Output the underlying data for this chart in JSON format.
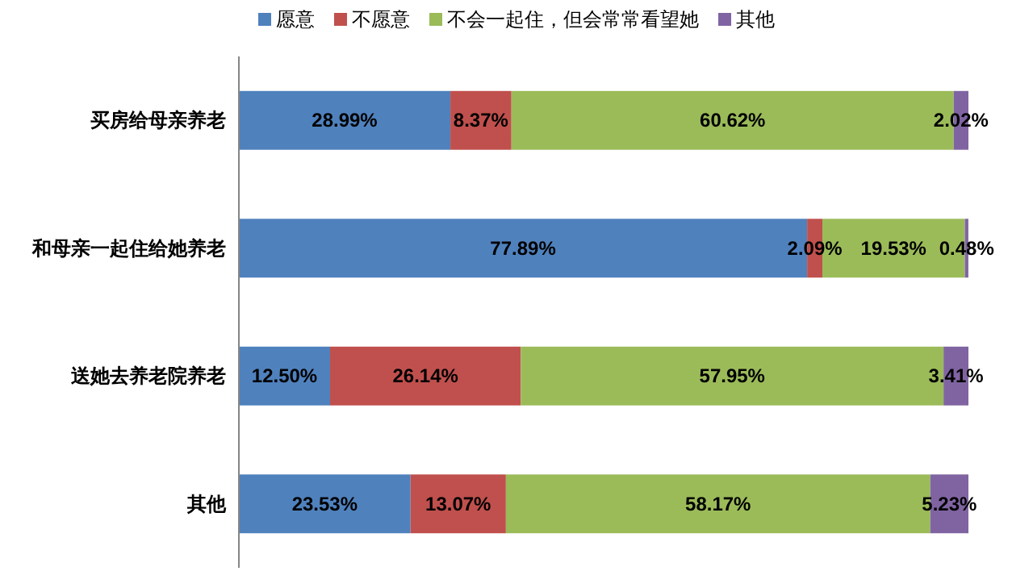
{
  "chart_data": {
    "type": "bar",
    "orientation": "horizontal",
    "stacked": true,
    "legend": "top",
    "categories": [
      "买房给母亲养老",
      "和母亲一起住给她养老",
      "送她去养老院养老",
      "其他"
    ],
    "series": [
      {
        "name": "愿意",
        "color": "#4f81bd",
        "values": [
          28.99,
          77.89,
          12.5,
          23.53
        ],
        "value_labels": [
          "28.99%",
          "77.89%",
          "12.50%",
          "23.53%"
        ]
      },
      {
        "name": "不愿意",
        "color": "#c0504d",
        "values": [
          8.37,
          2.09,
          26.14,
          13.07
        ],
        "value_labels": [
          "8.37%",
          "2.09%",
          "26.14%",
          "13.07%"
        ]
      },
      {
        "name": "不会一起住，但会常常看望她",
        "color": "#9bbb59",
        "values": [
          60.62,
          19.53,
          57.95,
          58.17
        ],
        "value_labels": [
          "60.62%",
          "19.53%",
          "57.95%",
          "58.17%"
        ]
      },
      {
        "name": "其他",
        "color": "#8064a2",
        "values": [
          2.02,
          0.48,
          3.41,
          5.23
        ],
        "value_labels": [
          "2.02%",
          "0.48%",
          "3.41%",
          "5.23%"
        ]
      }
    ]
  }
}
